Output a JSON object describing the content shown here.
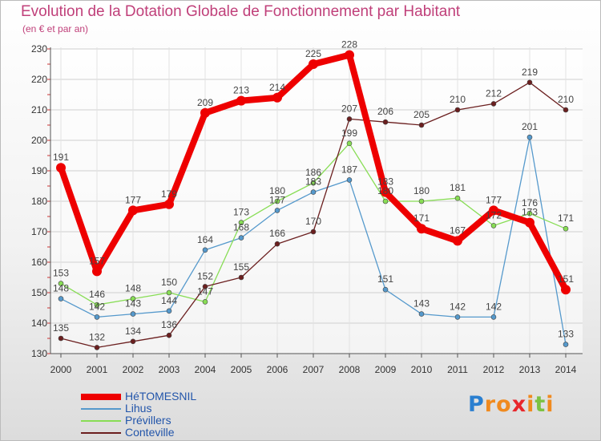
{
  "title": "Evolution de la Dotation Globale de Fonctionnement par Habitant",
  "subtitle": "(en € et par an)",
  "brand": {
    "letters": [
      "P",
      "r",
      "o",
      "x",
      "i",
      "t",
      "i"
    ],
    "colors": [
      "#2a7fd0",
      "#f08a1e",
      "#f08a1e",
      "#e8262b",
      "#f08a1e",
      "#7cc242",
      "#f08a1e"
    ]
  },
  "chart_data": {
    "type": "line",
    "title": "Evolution de la Dotation Globale de Fonctionnement par Habitant",
    "ylabel": "(en € et par an)",
    "xlabel": "",
    "ylim": [
      130,
      230
    ],
    "yticks": [
      130,
      140,
      150,
      160,
      170,
      180,
      190,
      200,
      210,
      220,
      230
    ],
    "x": [
      "2000",
      "2001",
      "2002",
      "2003",
      "2004",
      "2005",
      "2006",
      "2007",
      "2008",
      "2009",
      "2010",
      "2011",
      "2012",
      "2013",
      "2014"
    ],
    "grid": true,
    "legend_position": "bottom-left",
    "series": [
      {
        "name": "HéTOMESNIL",
        "color": "#ee0000",
        "width": 8,
        "marker": 6,
        "values": [
          191,
          157,
          177,
          179,
          209,
          213,
          214,
          225,
          228,
          183,
          171,
          167,
          177,
          173,
          151
        ]
      },
      {
        "name": "Lihus",
        "color": "#5599cc",
        "width": 1.3,
        "marker": 3,
        "values": [
          148,
          142,
          143,
          144,
          164,
          168,
          177,
          183,
          187,
          151,
          143,
          142,
          142,
          201,
          133
        ]
      },
      {
        "name": "Prévillers",
        "color": "#88dd55",
        "width": 1.3,
        "marker": 3,
        "values": [
          153,
          146,
          148,
          150,
          147,
          173,
          180,
          186,
          199,
          180,
          180,
          181,
          172,
          176,
          171
        ]
      },
      {
        "name": "Conteville",
        "color": "#6b1f1f",
        "width": 1.3,
        "marker": 3,
        "values": [
          135,
          132,
          134,
          136,
          152,
          155,
          166,
          170,
          207,
          206,
          205,
          210,
          212,
          219,
          210
        ]
      }
    ]
  }
}
